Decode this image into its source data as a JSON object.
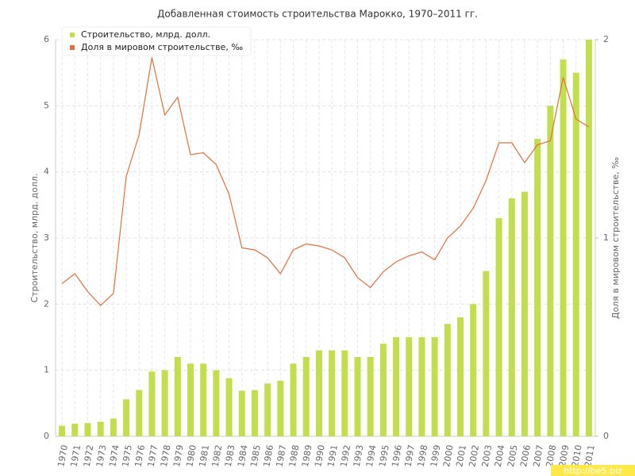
{
  "chart_data": {
    "type": "bar-line",
    "title": "Добавленная стоимость строительства Марокко, 1970–2011 гг.",
    "y_label": "Строительство, млрд. долл.",
    "y2_label": "Доля в мировом строительстве, ‰",
    "watermark": "http://be5.biz",
    "categories": [
      "1970",
      "1971",
      "1972",
      "1973",
      "1974",
      "1975",
      "1976",
      "1977",
      "1978",
      "1979",
      "1980",
      "1981",
      "1982",
      "1983",
      "1984",
      "1985",
      "1986",
      "1987",
      "1988",
      "1989",
      "1990",
      "1991",
      "1992",
      "1993",
      "1994",
      "1995",
      "1996",
      "1997",
      "1998",
      "1999",
      "2000",
      "2001",
      "2002",
      "2003",
      "2004",
      "2005",
      "2006",
      "2007",
      "2008",
      "2009",
      "2010",
      "2011"
    ],
    "series": [
      {
        "name": "Строительство, млрд. долл.",
        "color": "#c2de4c",
        "kind": "bar",
        "axis": "y",
        "values": [
          0.16,
          0.19,
          0.2,
          0.22,
          0.27,
          0.56,
          0.7,
          0.98,
          1.0,
          1.2,
          1.1,
          1.1,
          1.0,
          0.88,
          0.69,
          0.7,
          0.8,
          0.84,
          1.1,
          1.2,
          1.3,
          1.3,
          1.3,
          1.2,
          1.2,
          1.4,
          1.5,
          1.5,
          1.5,
          1.5,
          1.7,
          1.8,
          2.0,
          2.5,
          3.3,
          3.6,
          3.7,
          4.5,
          5.0,
          5.7,
          5.5,
          6.0
        ]
      },
      {
        "name": "Доля в мировом строительстве, ‰",
        "color": "#e0703c",
        "kind": "line",
        "axis": "y2",
        "values": [
          0.77,
          0.82,
          0.73,
          0.66,
          0.72,
          1.31,
          1.52,
          1.91,
          1.62,
          1.71,
          1.42,
          1.43,
          1.37,
          1.22,
          0.95,
          0.94,
          0.9,
          0.82,
          0.94,
          0.97,
          0.96,
          0.94,
          0.9,
          0.8,
          0.75,
          0.83,
          0.88,
          0.91,
          0.93,
          0.89,
          1.0,
          1.06,
          1.15,
          1.29,
          1.48,
          1.48,
          1.38,
          1.47,
          1.49,
          1.81,
          1.6,
          1.56
        ]
      }
    ],
    "ylim": [
      0,
      6
    ],
    "yticks": [
      0,
      1,
      2,
      3,
      4,
      5,
      6
    ],
    "y2lim": [
      0,
      2
    ],
    "y2ticks": [
      0,
      1,
      2
    ],
    "grid": true
  }
}
